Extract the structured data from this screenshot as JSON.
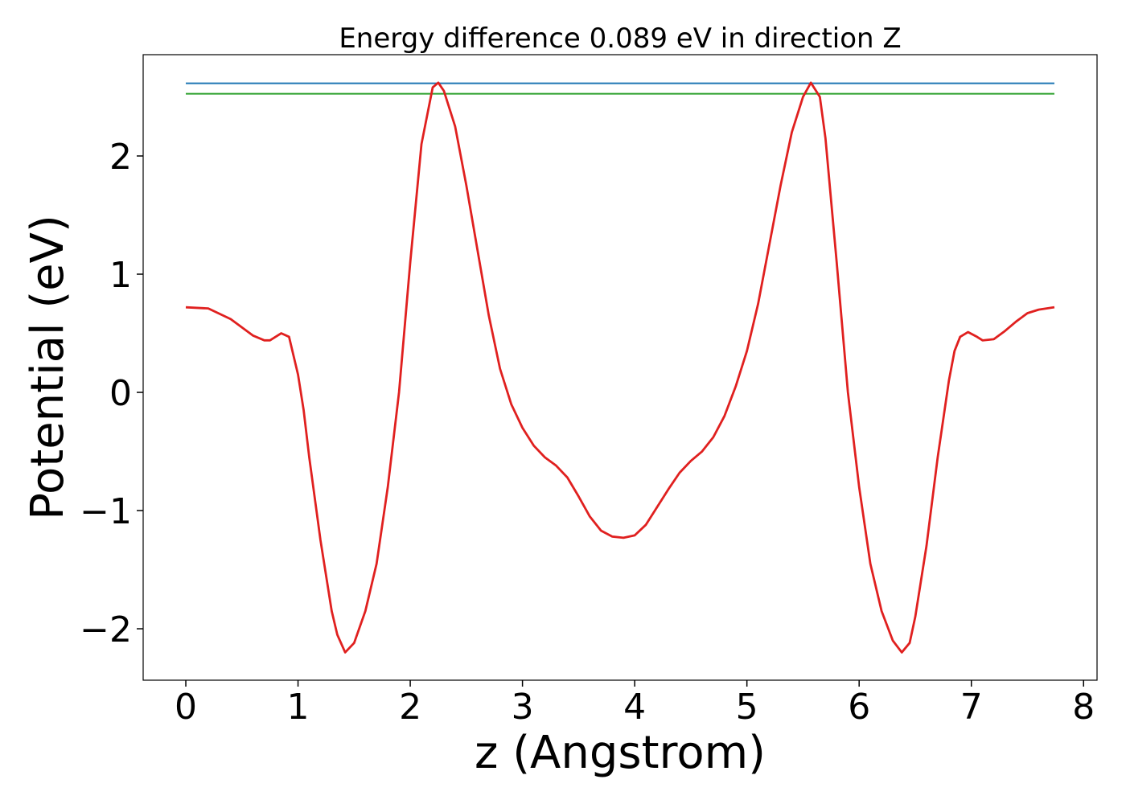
{
  "chart_data": {
    "type": "line",
    "title": "Energy difference 0.089 eV in direction Z",
    "xlabel": "z (Angstrom)",
    "ylabel": "Potential (eV)",
    "xlim": [
      -0.38,
      8.12
    ],
    "ylim": [
      -2.435,
      2.857
    ],
    "xticks": [
      0,
      1,
      2,
      3,
      4,
      5,
      6,
      7,
      8
    ],
    "yticks": [
      {
        "value": -2,
        "label": "−2"
      },
      {
        "value": -1,
        "label": "−1"
      },
      0,
      1,
      2
    ],
    "grid": false,
    "series": [
      {
        "color": "#1f77b4",
        "x": [
          0,
          7.74
        ],
        "values": [
          2.615,
          2.615
        ]
      },
      {
        "color": "#2ca02c",
        "x": [
          0,
          7.74
        ],
        "values": [
          2.526,
          2.526
        ]
      },
      {
        "color": "#e0201f",
        "x": [
          0,
          0.2,
          0.4,
          0.6,
          0.7,
          0.75,
          0.85,
          0.92,
          1.0,
          1.05,
          1.1,
          1.2,
          1.3,
          1.35,
          1.42,
          1.5,
          1.6,
          1.7,
          1.8,
          1.9,
          2.0,
          2.1,
          2.2,
          2.25,
          2.3,
          2.4,
          2.5,
          2.6,
          2.7,
          2.8,
          2.9,
          3.0,
          3.1,
          3.2,
          3.3,
          3.4,
          3.5,
          3.6,
          3.7,
          3.8,
          3.9,
          4.0,
          4.1,
          4.2,
          4.3,
          4.4,
          4.5,
          4.6,
          4.7,
          4.8,
          4.9,
          5.0,
          5.1,
          5.2,
          5.3,
          5.4,
          5.5,
          5.57,
          5.65,
          5.7,
          5.8,
          5.9,
          6.0,
          6.1,
          6.2,
          6.3,
          6.38,
          6.45,
          6.5,
          6.6,
          6.7,
          6.8,
          6.85,
          6.9,
          6.97,
          7.05,
          7.1,
          7.2,
          7.3,
          7.4,
          7.5,
          7.6,
          7.74
        ],
        "values": [
          0.72,
          0.71,
          0.62,
          0.48,
          0.44,
          0.44,
          0.5,
          0.47,
          0.15,
          -0.15,
          -0.55,
          -1.25,
          -1.85,
          -2.05,
          -2.2,
          -2.12,
          -1.85,
          -1.45,
          -0.8,
          0.0,
          1.1,
          2.1,
          2.58,
          2.62,
          2.55,
          2.25,
          1.75,
          1.2,
          0.65,
          0.2,
          -0.1,
          -0.3,
          -0.45,
          -0.55,
          -0.62,
          -0.72,
          -0.88,
          -1.05,
          -1.17,
          -1.22,
          -1.23,
          -1.21,
          -1.12,
          -0.97,
          -0.82,
          -0.68,
          -0.58,
          -0.5,
          -0.38,
          -0.2,
          0.05,
          0.35,
          0.75,
          1.25,
          1.75,
          2.2,
          2.5,
          2.62,
          2.5,
          2.15,
          1.1,
          0.0,
          -0.8,
          -1.45,
          -1.85,
          -2.1,
          -2.2,
          -2.12,
          -1.9,
          -1.3,
          -0.55,
          0.1,
          0.35,
          0.47,
          0.51,
          0.47,
          0.44,
          0.45,
          0.52,
          0.6,
          0.67,
          0.7,
          0.72
        ]
      }
    ]
  }
}
